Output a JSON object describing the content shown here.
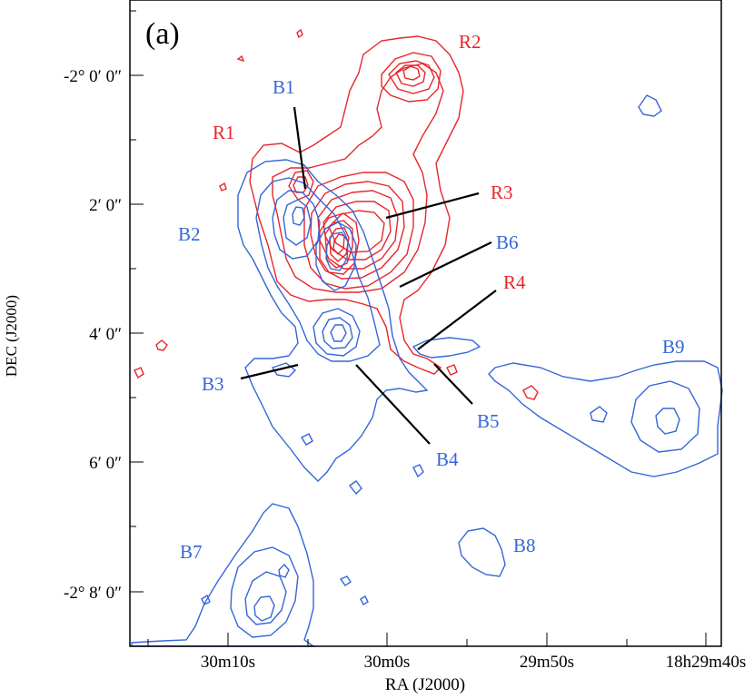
{
  "panel_label": "(a)",
  "axes": {
    "xlabel": "RA (J2000)",
    "ylabel": "DEC (J2000)",
    "xticks": [
      "30m10s",
      "30m0s",
      "29m50s",
      "18h29m40s"
    ],
    "yticks": [
      "-2° 0′ 0″",
      "2′ 0″",
      "4′ 0″",
      "6′ 0″",
      "-2° 8′ 0″"
    ]
  },
  "colors": {
    "red": "#e8262b",
    "blue": "#3566d8",
    "leader": "#000000"
  },
  "labels": {
    "R1": "R1",
    "R2": "R2",
    "R3": "R3",
    "R4": "R4",
    "B1": "B1",
    "B2": "B2",
    "B3": "B3",
    "B4": "B4",
    "B5": "B5",
    "B6": "B6",
    "B7": "B7",
    "B8": "B8",
    "B9": "B9"
  }
}
